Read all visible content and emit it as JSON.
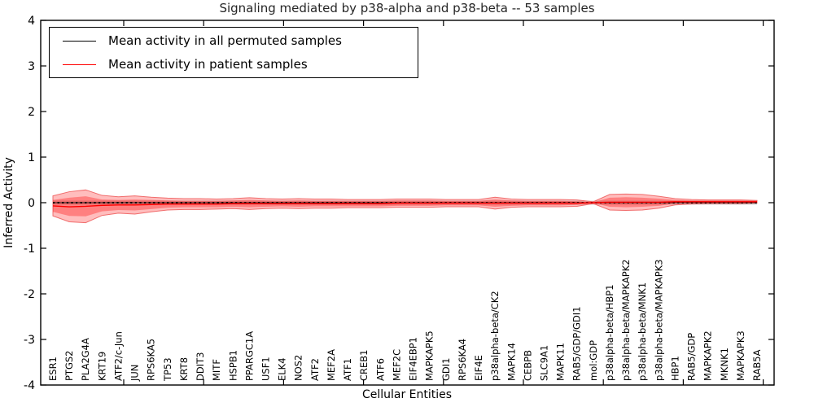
{
  "chart_data": {
    "type": "line",
    "title": "Signaling mediated by p38-alpha and p38-beta -- 53 samples",
    "xlabel": "Cellular Entities",
    "ylabel": "Inferred Activity",
    "ylim": [
      -4,
      4
    ],
    "yticks": [
      4,
      3,
      2,
      1,
      0,
      -1,
      -2,
      -3,
      -4
    ],
    "grid": false,
    "legend_position": "upper left",
    "categories": [
      "ESR1",
      "PTGS2",
      "PLA2G4A",
      "KRT19",
      "ATF2/c-Jun",
      "JUN",
      "RPS6KA5",
      "TP53",
      "KRT8",
      "DDIT3",
      "MITF",
      "HSPB1",
      "PPARGC1A",
      "USF1",
      "ELK4",
      "NOS2",
      "ATF2",
      "MEF2A",
      "ATF1",
      "CREB1",
      "ATF6",
      "MEF2C",
      "EIF4EBP1",
      "MAPKAPK5",
      "GDI1",
      "RPS6KA4",
      "EIF4E",
      "p38alpha-beta/CK2",
      "MAPK14",
      "CEBPB",
      "SLC9A1",
      "MAPK11",
      "RAB5/GDP/GDI1",
      "mol:GDP",
      "p38alpha-beta/HBP1",
      "p38alpha-beta/MAPKAPK2",
      "p38alpha-beta/MNK1",
      "p38alpha-beta/MAPKAPK3",
      "HBP1",
      "RAB5/GDP",
      "MAPKAPK2",
      "MKNK1",
      "MAPKAPK3",
      "RAB5A"
    ],
    "series": [
      {
        "name": "Mean activity in all permuted samples",
        "color": "#000000",
        "style": "dashed",
        "values": [
          0,
          0,
          0,
          0,
          0,
          0,
          0,
          0,
          0,
          0,
          0,
          0,
          0,
          0,
          0,
          0,
          0,
          0,
          0,
          0,
          0,
          0,
          0,
          0,
          0,
          0,
          0,
          0,
          0,
          0,
          0,
          0,
          0,
          0,
          0,
          0,
          0,
          0,
          0,
          0,
          0,
          0,
          0,
          0
        ]
      },
      {
        "name": "Mean activity in patient samples",
        "color": "#ff0000",
        "style": "solid",
        "values": [
          -0.07,
          -0.09,
          -0.08,
          -0.06,
          -0.05,
          -0.05,
          -0.04,
          -0.03,
          -0.03,
          -0.03,
          -0.03,
          -0.02,
          -0.02,
          -0.02,
          -0.02,
          -0.02,
          -0.02,
          -0.02,
          -0.02,
          -0.02,
          -0.02,
          -0.01,
          -0.01,
          -0.01,
          -0.01,
          -0.01,
          -0.01,
          -0.01,
          -0.01,
          -0.01,
          -0.01,
          -0.01,
          -0.01,
          0,
          0.01,
          0.01,
          0.01,
          0.01,
          0.02,
          0.02,
          0.02,
          0.02,
          0.02,
          0.02
        ]
      }
    ],
    "bands": [
      {
        "name": "patient-activity-range",
        "color": "#ff0000",
        "opacity_outer": 0.26,
        "opacity_inner": 0.32,
        "halfwidths_outer": [
          0.22,
          0.33,
          0.36,
          0.22,
          0.18,
          0.2,
          0.16,
          0.13,
          0.12,
          0.12,
          0.11,
          0.11,
          0.13,
          0.11,
          0.1,
          0.11,
          0.1,
          0.1,
          0.09,
          0.09,
          0.09,
          0.09,
          0.09,
          0.09,
          0.08,
          0.08,
          0.08,
          0.13,
          0.09,
          0.08,
          0.08,
          0.08,
          0.07,
          0.02,
          0.17,
          0.18,
          0.17,
          0.13,
          0.07,
          0.05,
          0.04,
          0.04,
          0.04,
          0.03
        ],
        "halfwidths_inner": [
          0.13,
          0.2,
          0.22,
          0.13,
          0.11,
          0.12,
          0.1,
          0.08,
          0.07,
          0.07,
          0.07,
          0.07,
          0.08,
          0.07,
          0.06,
          0.07,
          0.06,
          0.06,
          0.06,
          0.06,
          0.06,
          0.06,
          0.06,
          0.06,
          0.05,
          0.05,
          0.05,
          0.08,
          0.06,
          0.05,
          0.05,
          0.05,
          0.04,
          0.01,
          0.1,
          0.11,
          0.1,
          0.08,
          0.04,
          0.03,
          0.03,
          0.03,
          0.03,
          0.02
        ]
      },
      {
        "name": "permuted-activity-range",
        "color": "#8c8c8c",
        "opacity": 0.35,
        "halfwidth": 0.045
      }
    ]
  }
}
